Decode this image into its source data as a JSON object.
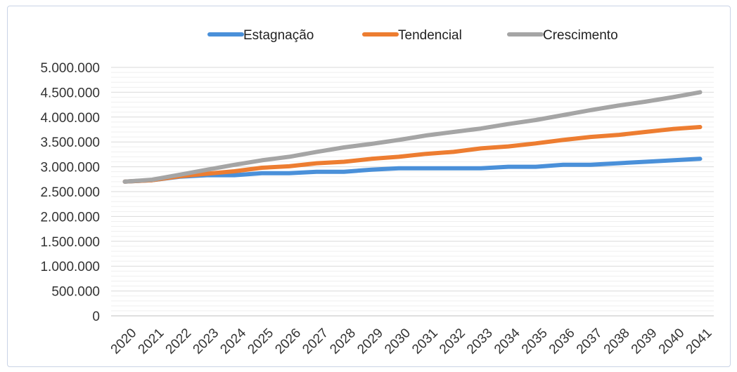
{
  "chart_data": {
    "type": "line",
    "title": "",
    "xlabel": "",
    "ylabel": "",
    "categories": [
      "2020",
      "2021",
      "2022",
      "2023",
      "2024",
      "2025",
      "2026",
      "2027",
      "2028",
      "2029",
      "2030",
      "2031",
      "2032",
      "2033",
      "2034",
      "2035",
      "2036",
      "2037",
      "2038",
      "2039",
      "2040",
      "2041"
    ],
    "ylim": [
      0,
      5000000
    ],
    "y_ticks": [
      0,
      500000,
      1000000,
      1500000,
      2000000,
      2500000,
      3000000,
      3500000,
      4000000,
      4500000,
      5000000
    ],
    "y_tick_labels": [
      "0",
      "500.000",
      "1.000.000",
      "1.500.000",
      "2.000.000",
      "2.500.000",
      "3.000.000",
      "3.500.000",
      "4.000.000",
      "4.500.000",
      "5.000.000"
    ],
    "grid": true,
    "legend_position": "top",
    "series": [
      {
        "name": "Estagnação",
        "color": "#4a90d9",
        "values": [
          2700000,
          2730000,
          2800000,
          2830000,
          2830000,
          2870000,
          2870000,
          2900000,
          2900000,
          2940000,
          2970000,
          2970000,
          2970000,
          2970000,
          3000000,
          3000000,
          3040000,
          3040000,
          3070000,
          3100000,
          3130000,
          3160000
        ]
      },
      {
        "name": "Tendencial",
        "color": "#ed7d31",
        "values": [
          2700000,
          2730000,
          2810000,
          2860000,
          2910000,
          2980000,
          3010000,
          3070000,
          3100000,
          3160000,
          3200000,
          3260000,
          3300000,
          3370000,
          3410000,
          3470000,
          3540000,
          3600000,
          3640000,
          3700000,
          3760000,
          3800000
        ]
      },
      {
        "name": "Crescimento",
        "color": "#a5a5a5",
        "values": [
          2700000,
          2740000,
          2840000,
          2940000,
          3040000,
          3130000,
          3200000,
          3300000,
          3390000,
          3460000,
          3540000,
          3630000,
          3700000,
          3770000,
          3860000,
          3940000,
          4040000,
          4140000,
          4230000,
          4310000,
          4400000,
          4500000
        ]
      }
    ]
  }
}
